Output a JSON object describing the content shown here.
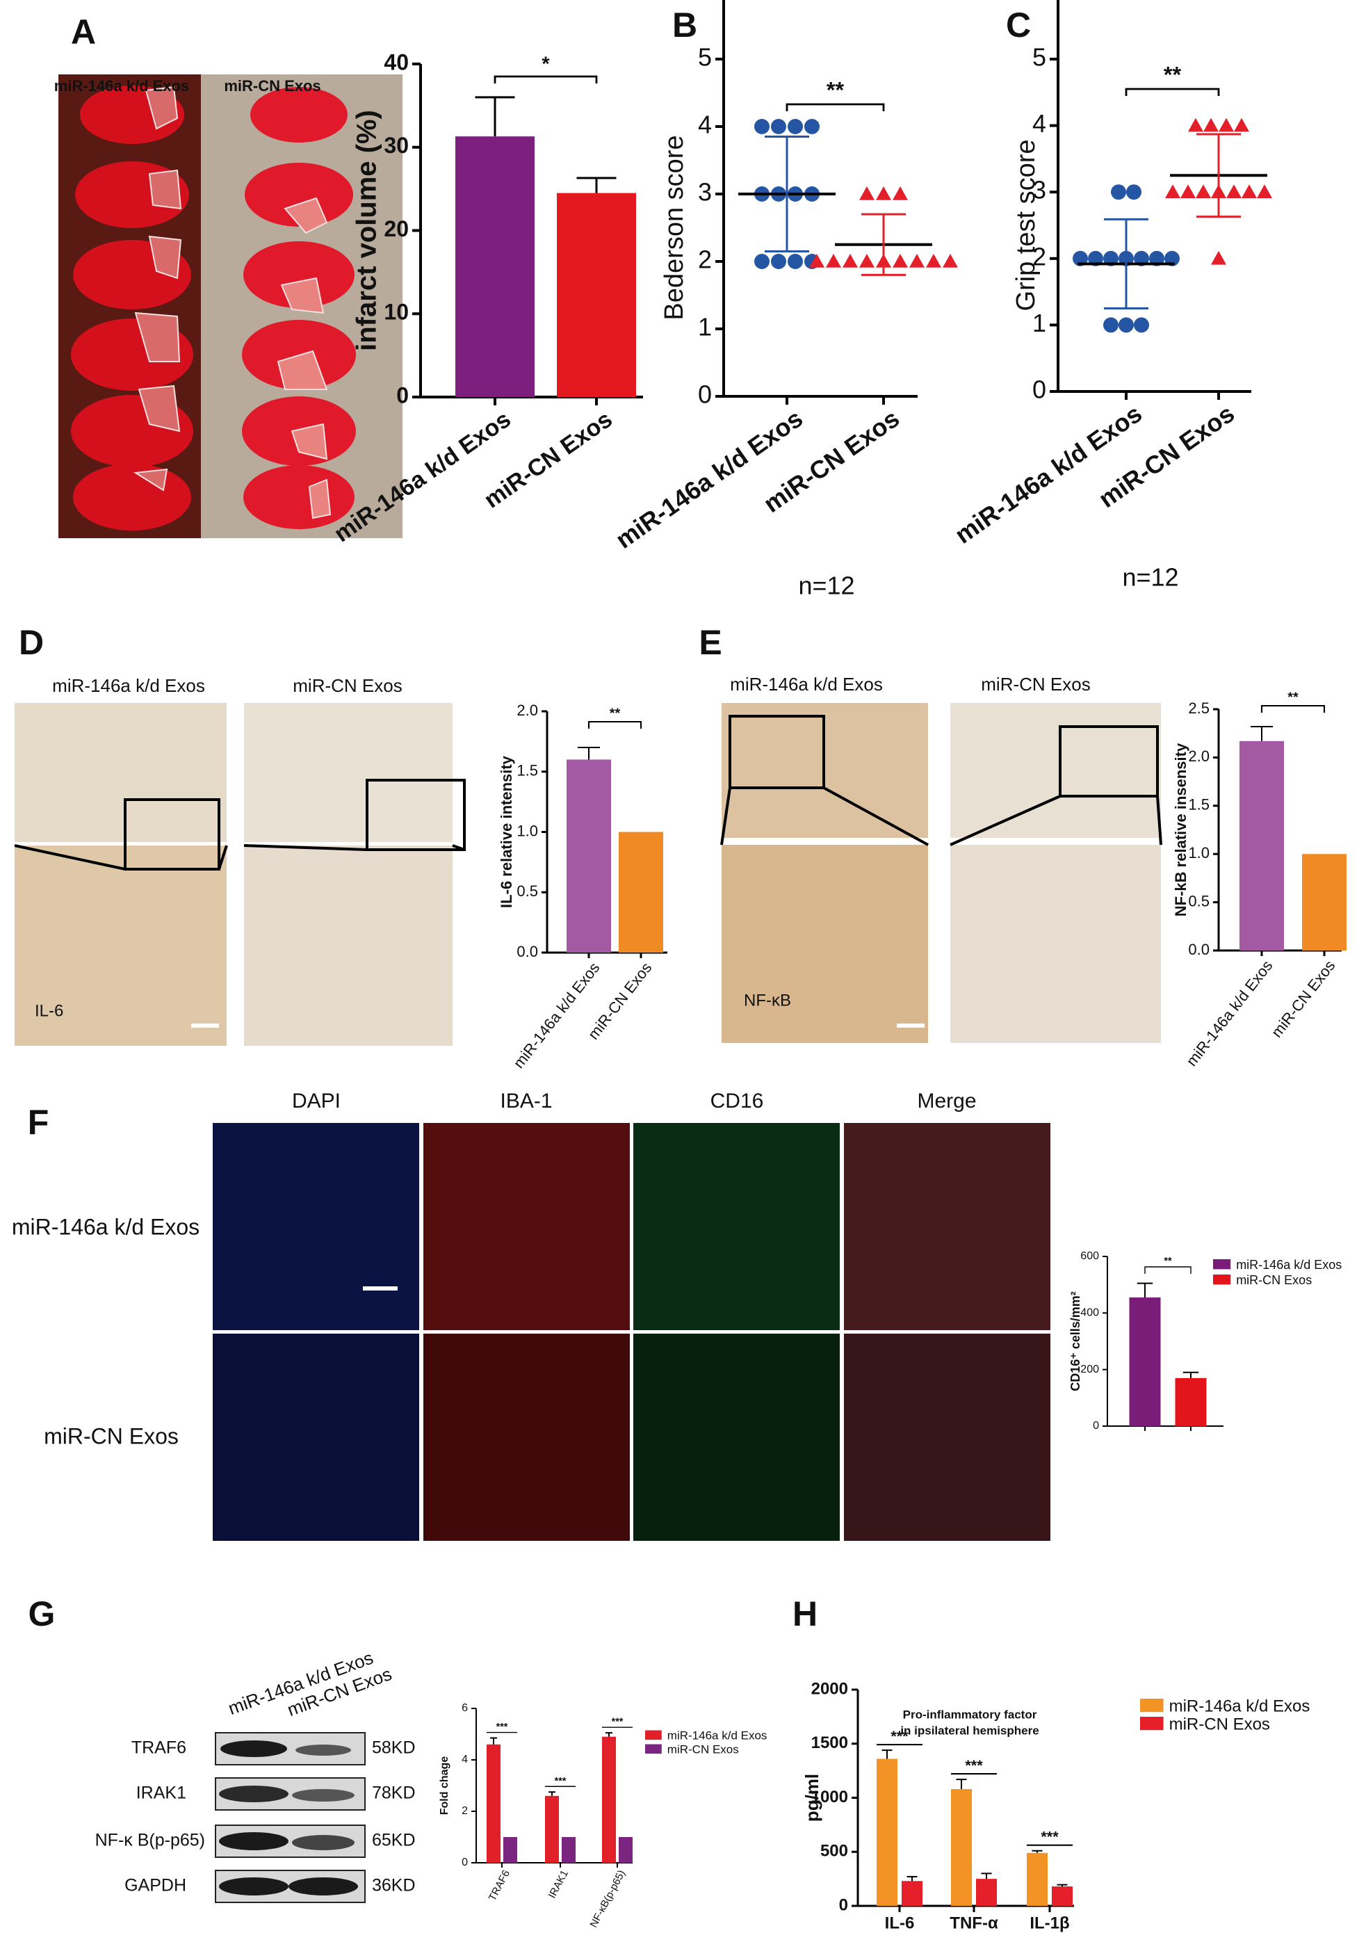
{
  "panel_letters": [
    "A",
    "B",
    "C",
    "D",
    "E",
    "F",
    "G",
    "H"
  ],
  "photos": {
    "A_headers": [
      "miR-146a k/d Exos",
      "miR-CN Exos"
    ],
    "D_headers": [
      "miR-146a k/d Exos",
      "miR-CN Exos"
    ],
    "D_marker": "IL-6",
    "E_headers": [
      "miR-146a k/d Exos",
      "miR-CN Exos"
    ],
    "E_marker": "NF-κB",
    "F_columns": [
      "DAPI",
      "IBA-1",
      "CD16",
      "Merge"
    ],
    "F_rows": [
      "miR-146a k/d Exos",
      "miR-CN Exos"
    ]
  },
  "blot": {
    "samples": [
      "miR-146a k/d Exos",
      "miR-CN Exos"
    ],
    "proteins": [
      "TRAF6",
      "IRAK1",
      "NF-κ B(p-p65)",
      "GAPDH"
    ],
    "sizes": [
      "58KD",
      "78KD",
      "65KD",
      "36KD"
    ]
  },
  "chart_data": [
    {
      "type": "bar",
      "ylabel": "infarct volume (%)",
      "categories": [
        "miR-146a k/d Exos",
        "miR-CN Exos"
      ],
      "values": [
        31.3,
        24.5
      ],
      "errors": [
        4.7,
        1.8
      ],
      "colors": [
        "#7d1f7e",
        "#e4181f"
      ],
      "ylim": [
        0,
        40
      ],
      "yticks": [
        0,
        10,
        20,
        30,
        40
      ],
      "significance": "*"
    },
    {
      "type": "scatter",
      "ylabel": "Bederson score",
      "categories": [
        "miR-146a k/d Exos",
        "miR-CN Exos"
      ],
      "values": [
        [
          4,
          4,
          4,
          4,
          3,
          3,
          3,
          3,
          2,
          2,
          2,
          2
        ],
        [
          3,
          3,
          3,
          2,
          2,
          2,
          2,
          2,
          2,
          2,
          2,
          2
        ]
      ],
      "means": [
        3,
        2.25
      ],
      "sd": [
        0.85,
        0.45
      ],
      "colors": [
        "#2456a4",
        "#e3202a"
      ],
      "markers": [
        "circle",
        "triangle"
      ],
      "ylim": [
        0,
        5
      ],
      "yticks": [
        0,
        1,
        2,
        3,
        4,
        5
      ],
      "significance": "**",
      "annotation": "n=12"
    },
    {
      "type": "scatter",
      "ylabel": "Grip test score",
      "categories": [
        "miR-146a k/d Exos",
        "miR-CN Exos"
      ],
      "values": [
        [
          3,
          3,
          2,
          2,
          2,
          2,
          2,
          2,
          2,
          1,
          1,
          1
        ],
        [
          4,
          4,
          4,
          4,
          3,
          3,
          3,
          3,
          3,
          3,
          3,
          2
        ]
      ],
      "means": [
        1.92,
        3.25
      ],
      "sd": [
        0.67,
        0.62
      ],
      "colors": [
        "#2456a4",
        "#e3202a"
      ],
      "markers": [
        "circle",
        "triangle"
      ],
      "ylim": [
        0,
        5
      ],
      "yticks": [
        0,
        1,
        2,
        3,
        4,
        5
      ],
      "significance": "**",
      "annotation": "n=12"
    },
    {
      "type": "bar",
      "ylabel": "IL-6 relative intensity",
      "categories": [
        "miR-146a k/d Exos",
        "miR-CN Exos"
      ],
      "values": [
        1.6,
        1.0
      ],
      "errors": [
        0.1,
        null
      ],
      "colors": [
        "#a45aa3",
        "#f08a24"
      ],
      "ylim": [
        0,
        2
      ],
      "yticks": [
        {
          "value": 0,
          "label": "0.0"
        },
        {
          "value": 0.5,
          "label": "0.5"
        },
        {
          "value": 1,
          "label": "1.0"
        },
        {
          "value": 1.5,
          "label": "1.5"
        },
        {
          "value": 2,
          "label": "2.0"
        }
      ],
      "significance": "**"
    },
    {
      "type": "bar",
      "ylabel": "NF-kB relative insensity",
      "categories": [
        "miR-146a k/d Exos",
        "miR-CN Exos"
      ],
      "values": [
        2.17,
        1.0
      ],
      "errors": [
        0.15,
        null
      ],
      "colors": [
        "#a45aa3",
        "#f08a24"
      ],
      "ylim": [
        0,
        2.5
      ],
      "yticks": [
        {
          "value": 0,
          "label": "0.0"
        },
        {
          "value": 0.5,
          "label": "0.5"
        },
        {
          "value": 1,
          "label": "1.0"
        },
        {
          "value": 1.5,
          "label": "1.5"
        },
        {
          "value": 2,
          "label": "2.0"
        },
        {
          "value": 2.5,
          "label": "2.5"
        }
      ],
      "significance": "**"
    },
    {
      "type": "bar",
      "ylabel": "CD16⁺ cells/mm²",
      "categories": [
        null
      ],
      "series": [
        {
          "name": "miR-146a k/d Exos",
          "color": "#7a1d78",
          "values": [
            455
          ],
          "errors": [
            50
          ]
        },
        {
          "name": "miR-CN Exos",
          "color": "#e4141c",
          "values": [
            170
          ],
          "errors": [
            20
          ]
        }
      ],
      "ylim": [
        0,
        600
      ],
      "yticks": [
        0,
        200,
        400,
        600
      ],
      "significance": "**",
      "legend": "upper right"
    },
    {
      "type": "bar",
      "ylabel": "Fold chage",
      "categories": [
        "TRAF6",
        "IRAK1",
        "NF-κB(p-p65)"
      ],
      "series": [
        {
          "name": "miR-146a k/d Exos",
          "color": "#e2202a",
          "values": [
            4.6,
            2.6,
            4.9
          ],
          "errors": [
            0.25,
            0.15,
            0.15
          ]
        },
        {
          "name": "miR-CN Exos",
          "color": "#7a2680",
          "values": [
            1,
            1,
            1
          ],
          "errors": [
            null,
            null,
            null
          ]
        }
      ],
      "ylim": [
        0,
        6
      ],
      "yticks": [
        0,
        2,
        4,
        6
      ],
      "significance": [
        "***",
        "***",
        "***"
      ],
      "legend": "upper right"
    },
    {
      "type": "bar",
      "title": [
        "Pro-inflammatory factor",
        "in ipsilateral hemisphere"
      ],
      "ylabel": "pg/ml",
      "categories": [
        "IL-6",
        "TNF-α",
        "IL-1β"
      ],
      "series": [
        {
          "name": "miR-146a k/d Exos",
          "color": "#f39325",
          "values": [
            1360,
            1080,
            490
          ],
          "errors": [
            80,
            90,
            20
          ]
        },
        {
          "name": "miR-CN Exos",
          "color": "#e6202a",
          "values": [
            230,
            250,
            180
          ],
          "errors": [
            40,
            50,
            15
          ]
        }
      ],
      "ylim": [
        0,
        2000
      ],
      "yticks": [
        0,
        500,
        1000,
        1500,
        2000
      ],
      "significance": [
        "***",
        "***",
        "***"
      ],
      "legend": "upper right"
    }
  ]
}
